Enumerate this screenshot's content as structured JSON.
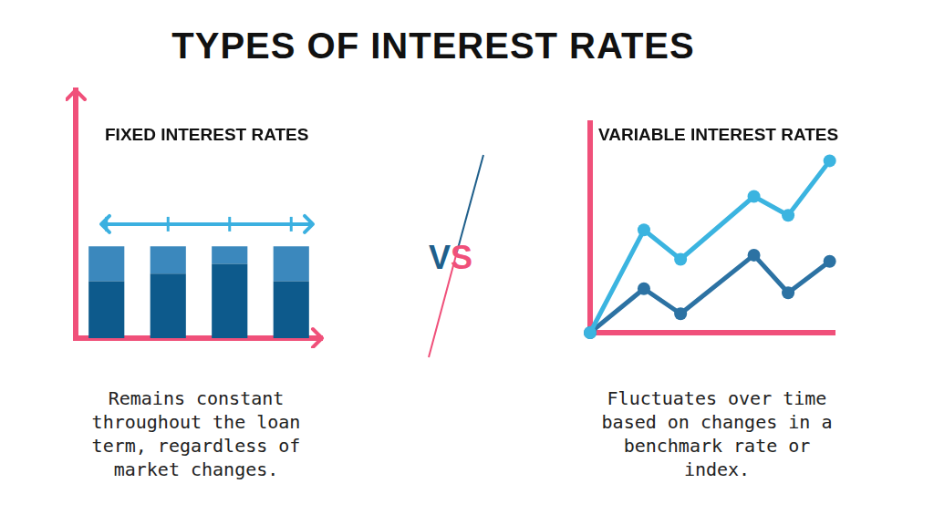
{
  "title": "TYPES OF INTEREST RATES",
  "separator": "VS",
  "chart_data": [
    {
      "type": "bar",
      "title": "FIXED INTEREST RATES",
      "subtitle": "Remains constant throughout the loan term, regardless of market changes.",
      "categories": [
        null,
        null,
        null,
        null
      ],
      "stacked": true,
      "tick_labels": false,
      "grid": false,
      "ylim": [
        0,
        100
      ],
      "series": [
        {
          "color": "#0d5a8c",
          "values": [
            23,
            26,
            30,
            23
          ]
        },
        {
          "color": "#3b88bd",
          "values": [
            14,
            11,
            7,
            14
          ]
        },
        {
          "type": "line",
          "color": "#3bb0e0",
          "marker": "line",
          "values": [
            46,
            46,
            46,
            46
          ]
        }
      ]
    },
    {
      "type": "line",
      "title": "VARIABLE INTEREST RATES",
      "subtitle": "Fluctuates over time based on changes in a benchmark rate or index.",
      "x": [
        0,
        22,
        37,
        67,
        81,
        98
      ],
      "xlim": [
        0,
        100
      ],
      "ylim": [
        0,
        100
      ],
      "tick_labels": false,
      "grid": false,
      "series": [
        {
          "color": "#3bb4e0",
          "marker": "circle",
          "values": [
            0,
            49,
            35,
            65,
            56,
            82
          ]
        },
        {
          "color": "#2c72a3",
          "marker": "circle",
          "values": [
            0,
            21,
            9,
            37,
            19,
            34
          ]
        }
      ]
    }
  ]
}
